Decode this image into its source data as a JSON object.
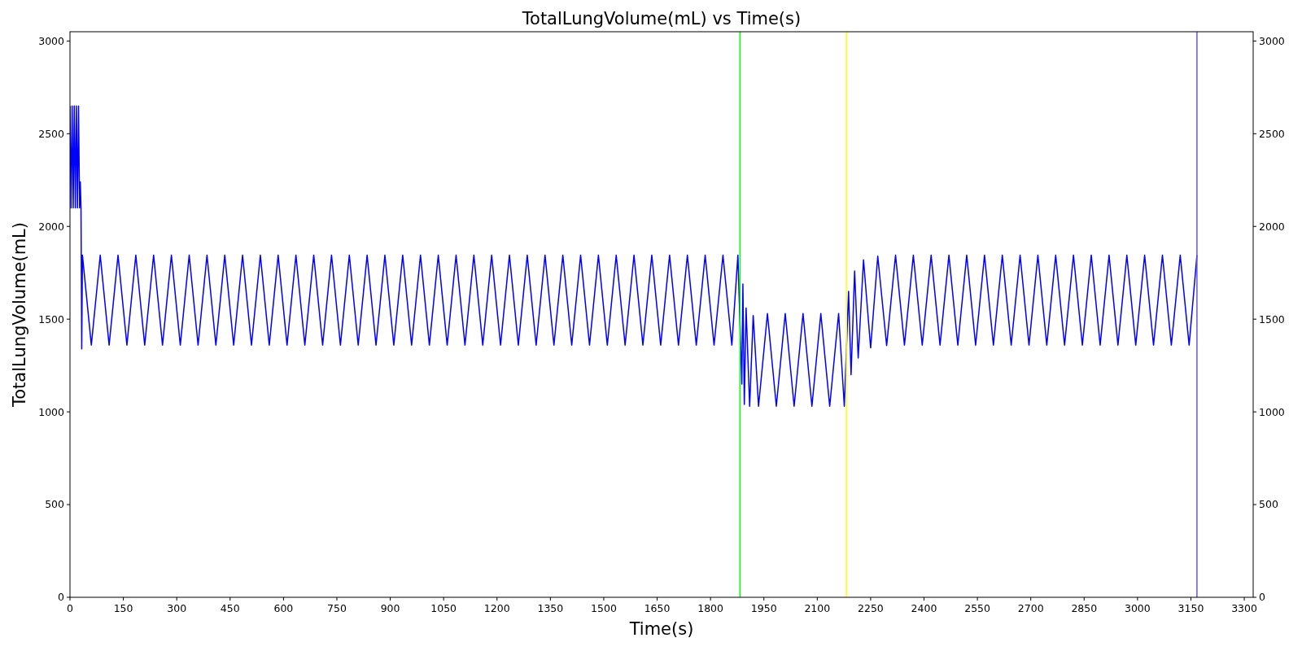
{
  "chart_data": {
    "type": "line",
    "title": "TotalLungVolume(mL) vs Time(s)",
    "xlabel": "Time(s)",
    "ylabel": "TotalLungVolume(mL)",
    "xlim": [
      0,
      3325
    ],
    "ylim": [
      0,
      3050
    ],
    "y2lim": [
      0,
      3050
    ],
    "xticks": [
      0,
      150,
      300,
      450,
      600,
      750,
      900,
      1050,
      1200,
      1350,
      1500,
      1650,
      1800,
      1950,
      2100,
      2250,
      2400,
      2550,
      2700,
      2850,
      3000,
      3150,
      3300
    ],
    "yticks": [
      0,
      500,
      1000,
      1500,
      2000,
      2500,
      3000
    ],
    "y2ticks": [
      0,
      500,
      1000,
      1500,
      2000,
      2500,
      3000
    ],
    "grid": false,
    "ref_lines": [
      {
        "axis": "x",
        "value": 1883,
        "color": "#00ff00"
      },
      {
        "axis": "x",
        "value": 2182,
        "color": "#ffff00"
      },
      {
        "axis": "x",
        "value": 3167,
        "color": "#6655dd"
      }
    ],
    "series": [
      {
        "color": "#0000ff",
        "x": [
          0,
          3,
          6,
          9,
          12,
          15,
          18,
          21,
          24,
          27,
          29,
          31,
          33,
          35,
          60,
          85,
          110,
          135,
          160,
          185,
          210,
          235,
          260,
          285,
          310,
          335,
          360,
          385,
          410,
          435,
          460,
          485,
          510,
          535,
          560,
          585,
          610,
          635,
          660,
          685,
          710,
          735,
          760,
          785,
          810,
          835,
          860,
          885,
          910,
          935,
          960,
          985,
          1010,
          1035,
          1060,
          1085,
          1110,
          1135,
          1160,
          1185,
          1210,
          1235,
          1260,
          1285,
          1310,
          1335,
          1360,
          1385,
          1410,
          1435,
          1460,
          1485,
          1510,
          1535,
          1560,
          1585,
          1610,
          1635,
          1660,
          1685,
          1710,
          1735,
          1760,
          1785,
          1810,
          1835,
          1860,
          1877,
          1888,
          1891,
          1895,
          1900,
          1910,
          1920,
          1935,
          1960,
          1985,
          2010,
          2035,
          2060,
          2085,
          2110,
          2135,
          2160,
          2176,
          2188,
          2195,
          2205,
          2215,
          2230,
          2250,
          2270,
          2295,
          2320,
          2345,
          2370,
          2395,
          2420,
          2445,
          2470,
          2495,
          2520,
          2545,
          2570,
          2595,
          2620,
          2645,
          2670,
          2695,
          2720,
          2745,
          2770,
          2795,
          2820,
          2845,
          2870,
          2895,
          2920,
          2945,
          2970,
          2995,
          3020,
          3045,
          3070,
          3095,
          3120,
          3145,
          3167
        ],
        "values": [
          2650,
          2100,
          2650,
          2100,
          2650,
          2100,
          2650,
          2100,
          2650,
          2100,
          2240,
          2100,
          1340,
          1845,
          1360,
          1845,
          1360,
          1845,
          1360,
          1845,
          1360,
          1845,
          1360,
          1845,
          1360,
          1845,
          1360,
          1845,
          1360,
          1845,
          1360,
          1845,
          1360,
          1845,
          1360,
          1845,
          1360,
          1845,
          1360,
          1845,
          1360,
          1845,
          1360,
          1845,
          1360,
          1845,
          1360,
          1845,
          1360,
          1845,
          1360,
          1845,
          1360,
          1845,
          1360,
          1845,
          1360,
          1845,
          1360,
          1845,
          1360,
          1845,
          1360,
          1845,
          1360,
          1845,
          1360,
          1845,
          1360,
          1845,
          1360,
          1845,
          1360,
          1845,
          1360,
          1845,
          1360,
          1845,
          1360,
          1845,
          1360,
          1845,
          1360,
          1845,
          1360,
          1845,
          1360,
          1845,
          1150,
          1690,
          1040,
          1560,
          1030,
          1520,
          1030,
          1530,
          1030,
          1530,
          1030,
          1530,
          1030,
          1530,
          1030,
          1530,
          1030,
          1650,
          1200,
          1760,
          1290,
          1820,
          1345,
          1840,
          1358,
          1845,
          1360,
          1845,
          1360,
          1845,
          1360,
          1845,
          1360,
          1845,
          1360,
          1845,
          1360,
          1845,
          1360,
          1845,
          1360,
          1845,
          1360,
          1845,
          1360,
          1845,
          1360,
          1845,
          1360,
          1845,
          1360,
          1845,
          1360,
          1845,
          1360,
          1845,
          1360,
          1845,
          1360,
          1845
        ]
      }
    ]
  }
}
